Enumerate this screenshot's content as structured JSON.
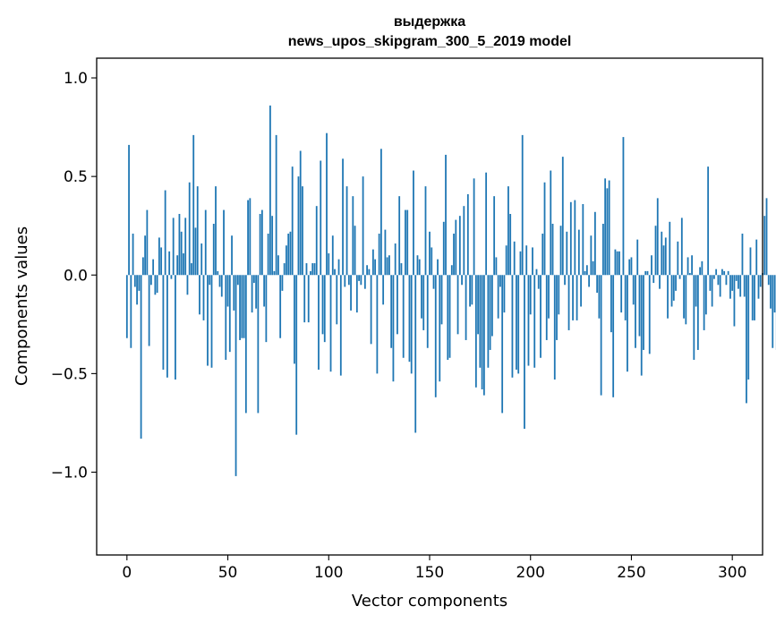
{
  "chart_data": {
    "type": "bar",
    "title": "выдержка",
    "subtitle": "news_upos_skipgram_300_5_2019 model",
    "xlabel": "Vector components",
    "ylabel": "Components values",
    "xlim": [
      -15,
      315
    ],
    "ylim": [
      -1.42,
      1.1
    ],
    "xticks": [
      0,
      50,
      100,
      150,
      200,
      250,
      300
    ],
    "xtick_labels": [
      "0",
      "50",
      "100",
      "150",
      "200",
      "250",
      "300"
    ],
    "yticks": [
      -1.0,
      -0.5,
      0.0,
      0.5,
      1.0
    ],
    "ytick_labels": [
      "−1.0",
      "−0.5",
      "0.0",
      "0.5",
      "1.0"
    ],
    "grid": false,
    "bar_color": "#1f77b4",
    "values": [
      -0.32,
      0.66,
      -0.37,
      0.21,
      -0.06,
      -0.15,
      -0.08,
      -0.83,
      0.09,
      0.2,
      0.33,
      -0.36,
      -0.05,
      0.08,
      -0.1,
      -0.09,
      0.19,
      0.14,
      -0.48,
      0.43,
      -0.52,
      0.12,
      -0.02,
      0.29,
      -0.53,
      0.1,
      0.31,
      0.22,
      0.11,
      0.29,
      -0.1,
      0.47,
      0.06,
      0.71,
      0.24,
      0.45,
      -0.2,
      0.16,
      -0.23,
      0.33,
      -0.46,
      -0.05,
      -0.47,
      0.26,
      0.45,
      0.02,
      -0.06,
      -0.11,
      0.33,
      -0.43,
      -0.16,
      -0.39,
      0.2,
      -0.18,
      -1.02,
      -0.05,
      -0.33,
      -0.32,
      -0.32,
      -0.7,
      0.38,
      0.39,
      -0.19,
      -0.04,
      -0.17,
      -0.7,
      0.31,
      0.33,
      -0.16,
      -0.34,
      0.21,
      0.86,
      0.3,
      0.02,
      0.71,
      0.1,
      -0.32,
      -0.08,
      0.06,
      0.15,
      0.21,
      0.22,
      0.55,
      -0.45,
      -0.81,
      0.5,
      0.63,
      0.45,
      -0.24,
      0.06,
      -0.24,
      0.02,
      0.06,
      0.06,
      0.35,
      -0.48,
      0.58,
      -0.3,
      -0.34,
      0.72,
      0.11,
      -0.49,
      0.2,
      0.03,
      -0.25,
      0.08,
      -0.51,
      0.59,
      -0.06,
      0.45,
      -0.05,
      -0.18,
      0.4,
      0.25,
      -0.19,
      -0.03,
      -0.05,
      0.5,
      -0.07,
      0.05,
      0.03,
      -0.35,
      0.13,
      0.08,
      -0.5,
      0.21,
      0.64,
      -0.15,
      0.23,
      0.09,
      0.1,
      -0.37,
      -0.54,
      0.16,
      -0.3,
      0.4,
      0.06,
      -0.42,
      0.33,
      0.33,
      -0.44,
      -0.5,
      0.53,
      -0.8,
      0.1,
      0.08,
      -0.22,
      -0.28,
      0.45,
      -0.37,
      0.22,
      0.14,
      -0.07,
      -0.62,
      0.08,
      -0.54,
      -0.25,
      0.27,
      0.61,
      -0.43,
      -0.42,
      0.05,
      0.21,
      0.28,
      -0.3,
      0.3,
      -0.05,
      0.35,
      -0.33,
      0.41,
      -0.16,
      -0.15,
      0.49,
      -0.57,
      -0.3,
      -0.47,
      -0.58,
      -0.61,
      0.52,
      -0.47,
      -0.38,
      -0.31,
      0.4,
      0.09,
      -0.22,
      -0.06,
      -0.7,
      -0.19,
      0.15,
      0.45,
      0.31,
      -0.52,
      0.17,
      -0.48,
      -0.5,
      0.12,
      0.71,
      -0.78,
      0.15,
      -0.46,
      -0.2,
      0.14,
      -0.47,
      0.03,
      -0.07,
      -0.42,
      0.21,
      0.47,
      -0.33,
      -0.22,
      0.53,
      0.26,
      -0.53,
      -0.33,
      -0.2,
      0.25,
      0.6,
      -0.05,
      0.22,
      -0.28,
      0.37,
      -0.23,
      0.38,
      -0.23,
      0.23,
      -0.16,
      0.36,
      0.02,
      0.05,
      -0.06,
      0.2,
      0.07,
      0.32,
      -0.09,
      -0.22,
      -0.61,
      0.26,
      0.49,
      0.44,
      0.48,
      -0.29,
      -0.62,
      0.13,
      0.12,
      0.12,
      -0.19,
      0.7,
      -0.23,
      -0.49,
      0.08,
      0.09,
      -0.15,
      -0.37,
      0.18,
      -0.31,
      -0.51,
      -0.38,
      0.02,
      0.02,
      -0.4,
      0.1,
      -0.04,
      0.25,
      0.39,
      -0.07,
      0.22,
      0.15,
      0.19,
      -0.22,
      0.27,
      -0.16,
      -0.13,
      -0.08,
      0.17,
      -0.02,
      0.29,
      -0.22,
      -0.25,
      0.09,
      0.01,
      0.1,
      -0.43,
      -0.16,
      -0.38,
      0.04,
      0.07,
      -0.28,
      -0.2,
      0.55,
      -0.08,
      -0.16,
      -0.02,
      0.03,
      -0.05,
      -0.11,
      0.03,
      0.02,
      -0.05,
      0.02,
      -0.12,
      -0.08,
      -0.26,
      -0.03,
      -0.07,
      -0.11,
      0.21,
      -0.11,
      -0.65,
      -0.53,
      0.14,
      -0.23,
      -0.23,
      0.18,
      -0.12,
      -0.06,
      0.01,
      0.3,
      0.39,
      -0.05,
      -0.17,
      -0.37,
      -0.19,
      -0.38
    ]
  }
}
